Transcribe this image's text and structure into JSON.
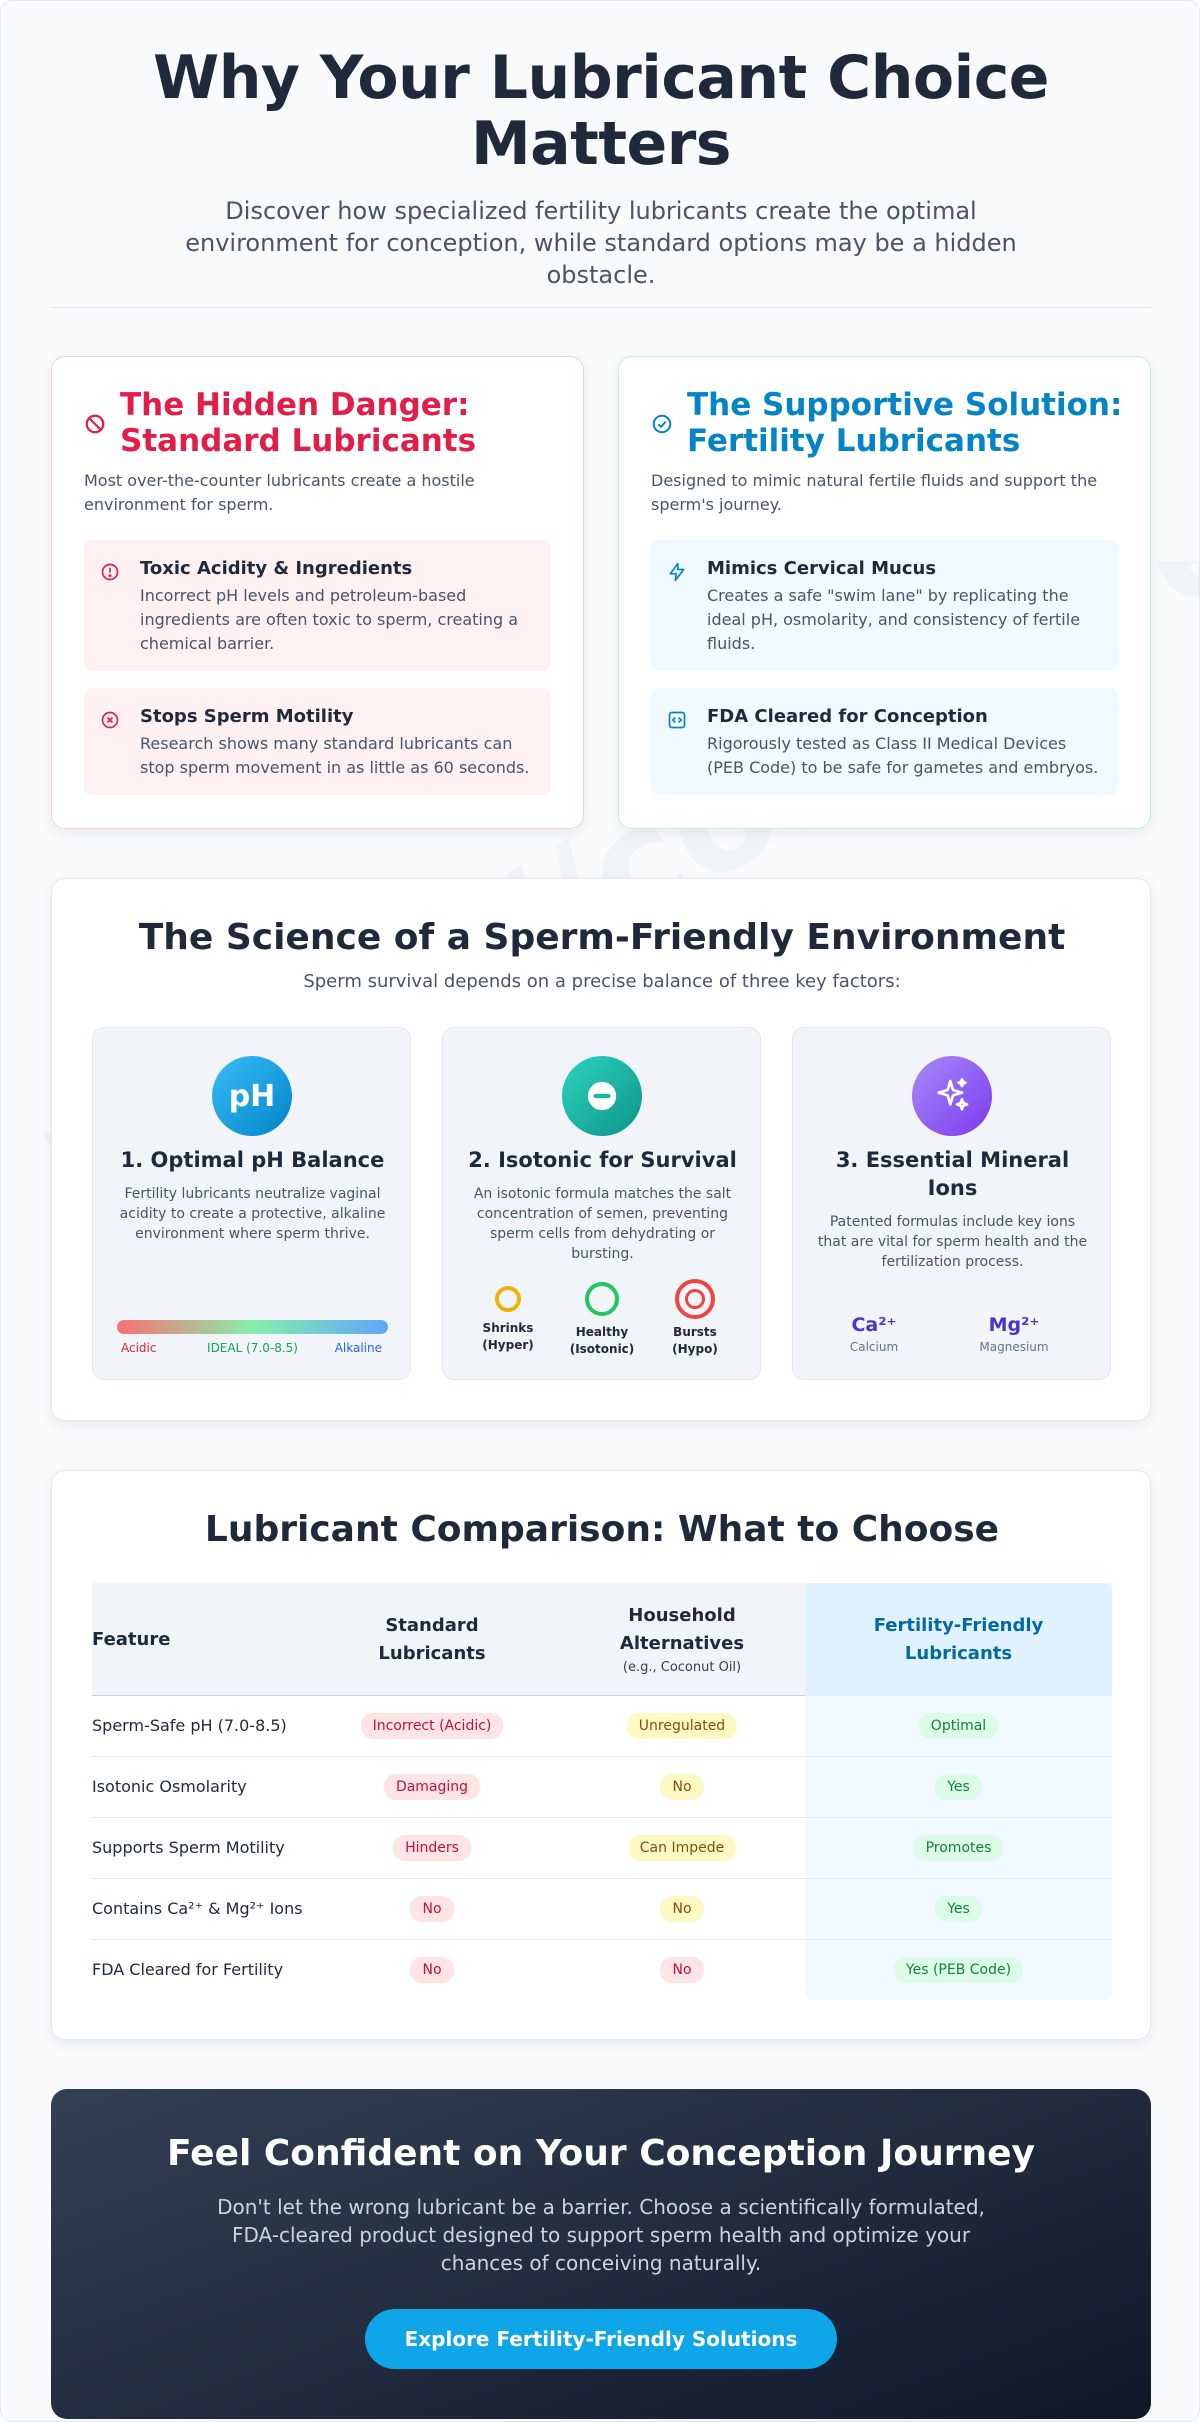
{
  "header": {
    "title": "Why Your Lubricant Choice Matters",
    "subtitle": "Discover how specialized fertility lubricants create the optimal environment for conception, while standard options may be a hidden obstacle."
  },
  "danger": {
    "icon": "ban-icon",
    "title": "The Hidden Danger: Standard Lubricants",
    "description": "Most over-the-counter lubricants create a hostile environment for sperm.",
    "items": [
      {
        "icon": "alert-circle-icon",
        "title": "Toxic Acidity & Ingredients",
        "text": "Incorrect pH levels and petroleum-based ingredients are often toxic to sperm, creating a chemical barrier."
      },
      {
        "icon": "x-circle-icon",
        "title": "Stops Sperm Motility",
        "text": "Research shows many standard lubricants can stop sperm movement in as little as 60 seconds."
      }
    ]
  },
  "solution": {
    "icon": "check-circle-icon",
    "title": "The Supportive Solution: Fertility Lubricants",
    "description": "Designed to mimic natural fertile fluids and support the sperm's journey.",
    "items": [
      {
        "icon": "lightning-icon",
        "title": "Mimics Cervical Mucus",
        "text": "Creates a safe \"swim lane\" by replicating the ideal pH, osmolarity, and consistency of fertile fluids."
      },
      {
        "icon": "code-square-icon",
        "title": "FDA Cleared for Conception",
        "text": "Rigorously tested as Class II Medical Devices (PEB Code) to be safe for gametes and embryos."
      }
    ]
  },
  "science": {
    "title": "The Science of a Sperm-Friendly Environment",
    "subtitle": "Sperm survival depends on a precise balance of three key factors:",
    "factors": [
      {
        "icon_text": "pH",
        "title": "1. Optimal pH Balance",
        "text": "Fertility lubricants neutralize vaginal acidity to create a protective, alkaline environment where sperm thrive."
      },
      {
        "icon": "minus-circle-icon",
        "title": "2. Isotonic for Survival",
        "text": "An isotonic formula matches the salt concentration of semen, preventing sperm cells from dehydrating or bursting."
      },
      {
        "icon": "sparkles-icon",
        "title": "3. Essential Mineral Ions",
        "text": "Patented formulas include key ions that are vital for sperm health and the fertilization process."
      }
    ],
    "ph_scale": {
      "acidic": "Acidic",
      "ideal": "IDEAL (7.0-8.5)",
      "alkaline": "Alkaline"
    },
    "osmolarity": [
      {
        "label": "Shrinks",
        "sub": "(Hyper)",
        "color": "#eab308"
      },
      {
        "label": "Healthy",
        "sub": "(Isotonic)",
        "color": "#22c55e"
      },
      {
        "label": "Bursts",
        "sub": "(Hypo)",
        "color": "#ef4444"
      }
    ],
    "ions": [
      {
        "symbol": "Ca²⁺",
        "name": "Calcium"
      },
      {
        "symbol": "Mg²⁺",
        "name": "Magnesium"
      }
    ]
  },
  "comparison": {
    "title": "Lubricant Comparison: What to Choose",
    "headers": {
      "feature": "Feature",
      "standard": "Standard Lubricants",
      "household": "Household Alternatives",
      "household_note": "(e.g., Coconut Oil)",
      "fertility": "Fertility-Friendly Lubricants"
    },
    "rows": [
      {
        "feature": "Sperm-Safe pH (7.0-8.5)",
        "standard": "Incorrect (Acidic)",
        "household": "Unregulated",
        "fertility": "Optimal"
      },
      {
        "feature": "Isotonic Osmolarity",
        "standard": "Damaging",
        "household": "No",
        "fertility": "Yes"
      },
      {
        "feature": "Supports Sperm Motility",
        "standard": "Hinders",
        "household": "Can Impede",
        "fertility": "Promotes"
      },
      {
        "feature": "Contains Ca²⁺ & Mg²⁺ Ions",
        "standard": "No",
        "household": "No",
        "fertility": "Yes"
      },
      {
        "feature": "FDA Cleared for Fertility",
        "standard": "No",
        "household": "No",
        "fertility": "Yes (PEB Code)"
      }
    ],
    "colors": {
      "bad": "#be123c",
      "caution": "#854d0e",
      "good": "#15803d"
    }
  },
  "cta": {
    "title": "Feel Confident on Your Conception Journey",
    "text": "Don't let the wrong lubricant be a barrier. Choose a scientifically formulated, FDA-cleared product designed to support sperm health and optimize your chances of conceiving naturally.",
    "button": "Explore Fertility-Friendly Solutions"
  }
}
